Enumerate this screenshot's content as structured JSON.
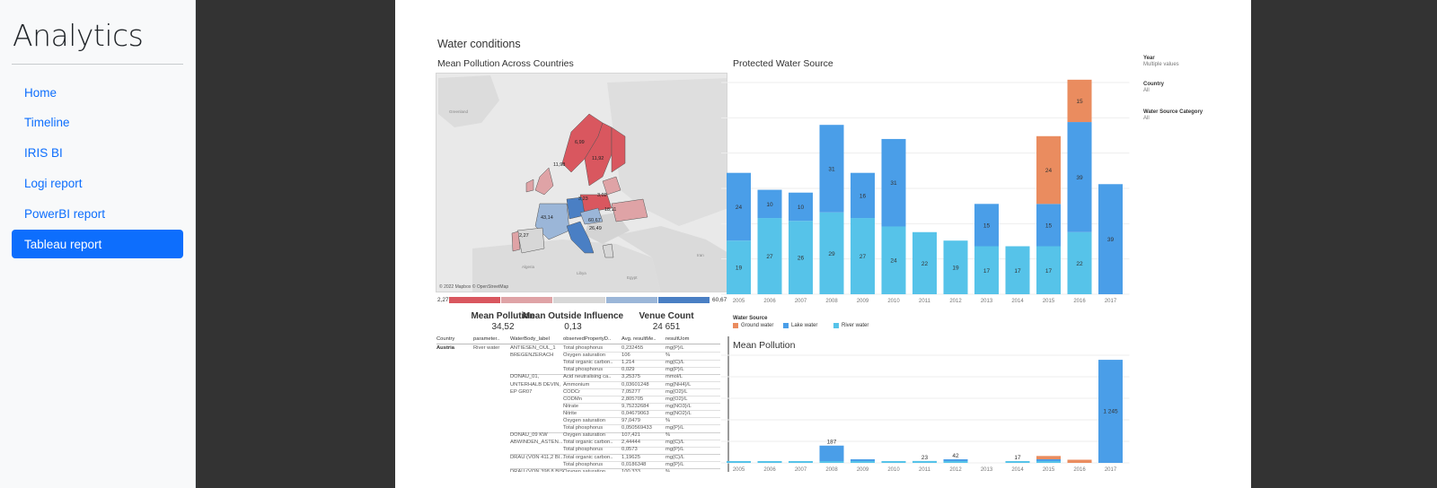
{
  "sidebar": {
    "brand": "Analytics",
    "items": [
      {
        "label": "Home",
        "active": false
      },
      {
        "label": "Timeline",
        "active": false
      },
      {
        "label": "IRIS BI",
        "active": false
      },
      {
        "label": "Logi report",
        "active": false
      },
      {
        "label": "PowerBI report",
        "active": false
      },
      {
        "label": "Tableau report",
        "active": true
      }
    ]
  },
  "report": {
    "title": "Water conditions",
    "map": {
      "title": "Mean Pollution Across Countries",
      "credit": "© 2022 Mapbox © OpenStreetMap",
      "region_labels": [
        "Greenland",
        "Algeria",
        "Libya",
        "Egypt",
        "Iran"
      ],
      "country_labels": [
        "6,99",
        "11,92",
        "11,98",
        "3,02",
        "3,23",
        "18,11",
        "43,14",
        "60,67",
        "26,49",
        "2,27"
      ],
      "ramp_min": "2,27",
      "ramp_max": "60,67",
      "ramp_colors": [
        "#d9575f",
        "#dfa3a6",
        "#d7d7d7",
        "#9bb6d8",
        "#4a7fc4"
      ]
    },
    "kpis": [
      {
        "label": "Mean Pollution",
        "value": "34,52"
      },
      {
        "label": "Mean Outside Influence",
        "value": "0,13"
      },
      {
        "label": "Venue Count",
        "value": "24 651"
      }
    ],
    "table": {
      "headers": [
        "Country",
        "parameter..",
        "WaterBody_label",
        "observedPropertyD..",
        "Avg. resultMe..",
        "resultUom"
      ],
      "country": "Austria",
      "parameter": "River water",
      "groups": [
        {
          "waterbody": [
            "ANTIESEN_OUL_1",
            "BREGENZERACH"
          ],
          "rows": [
            [
              "Total phosphorus",
              "0,232455",
              "mg{P}/L"
            ],
            [
              "Oxygen saturation",
              "106",
              "%"
            ],
            [
              "Total organic carbon..",
              "1,214",
              "mg{C}/L"
            ],
            [
              "Total phosphorus",
              "0,029",
              "mg{P}/L"
            ]
          ]
        },
        {
          "waterbody": [
            "DONAU_01,",
            "UNTERHALB DEVIN,",
            "EP GR07"
          ],
          "rows": [
            [
              "Acid neutralising ca..",
              "3,25375",
              "mmol/L"
            ],
            [
              "Ammonium",
              "0,03601248",
              "mg{NH4}/L"
            ],
            [
              "CODCr",
              "7,05277",
              "mg{O2}/L"
            ],
            [
              "CODMn",
              "2,805705",
              "mg{O2}/L"
            ],
            [
              "Nitrate",
              "9,75232684",
              "mg{NO3}/L"
            ],
            [
              "Nitrite",
              "0,04679063",
              "mg{NO2}/L"
            ],
            [
              "Oxygen saturation",
              "97,0479",
              "%"
            ],
            [
              "Total phosphorus",
              "0,050569433",
              "mg{P}/L"
            ]
          ]
        },
        {
          "waterbody": [
            "DONAU_09 KW",
            "ABWINDEN_ASTEN..."
          ],
          "rows": [
            [
              "Oxygen saturation",
              "107,421",
              "%"
            ],
            [
              "Total organic carbon..",
              "2,44444",
              "mg{C}/L"
            ],
            [
              "Total phosphorus",
              "0,0573",
              "mg{P}/L"
            ]
          ]
        },
        {
          "waterbody": [
            "DRAU (VON 411,2 BI..."
          ],
          "rows": [
            [
              "Total organic carbon..",
              "1,19625",
              "mg{C}/L"
            ],
            [
              "Total phosphorus",
              "0,0186348",
              "mg{P}/L"
            ]
          ]
        },
        {
          "waterbody": [
            "DRAU (VON 398,8 BIS"
          ],
          "rows": [
            [
              "Oxygen saturation",
              "100,333",
              "%"
            ]
          ]
        }
      ]
    },
    "filters": [
      {
        "label": "Year",
        "value": "Multiple values"
      },
      {
        "label": "Country",
        "value": "All"
      },
      {
        "label": "Water Source Category",
        "value": "All"
      }
    ],
    "colors": {
      "ground": "#ea8c5f",
      "lake": "#4a9ee8",
      "river": "#56c3e9",
      "gridline": "#eeeeee"
    }
  },
  "chart_data": [
    {
      "type": "bar",
      "stacked": true,
      "title": "Protected Water Source",
      "categories": [
        "2005",
        "2006",
        "2007",
        "2008",
        "2009",
        "2010",
        "2011",
        "2012",
        "2013",
        "2014",
        "2015",
        "2016",
        "2017"
      ],
      "series": [
        {
          "name": "River water",
          "values": [
            19,
            27,
            26,
            29,
            27,
            24,
            22,
            19,
            17,
            17,
            17,
            22,
            null
          ]
        },
        {
          "name": "Lake water",
          "values": [
            24,
            10,
            10,
            31,
            16,
            31,
            null,
            null,
            15,
            null,
            15,
            39,
            39
          ]
        },
        {
          "name": "Ground water",
          "values": [
            null,
            null,
            null,
            null,
            null,
            null,
            null,
            null,
            null,
            null,
            24,
            15,
            null
          ]
        }
      ],
      "legend_title": "Water Source",
      "legend_placement": "bottom-left",
      "ylim": [
        0,
        75
      ],
      "grid": true
    },
    {
      "type": "bar",
      "stacked": true,
      "title": "Mean Pollution",
      "categories": [
        "2005",
        "2006",
        "2007",
        "2008",
        "2009",
        "2010",
        "2011",
        "2012",
        "2013",
        "2014",
        "2015",
        "2016",
        "2017"
      ],
      "series": [
        {
          "name": "River water",
          "values": [
            8,
            10,
            12,
            10,
            10,
            7,
            23,
            21,
            null,
            17,
            8,
            null,
            null
          ]
        },
        {
          "name": "Lake water",
          "values": [
            null,
            null,
            null,
            187,
            22,
            null,
            null,
            21,
            null,
            null,
            20,
            null,
            1245
          ]
        },
        {
          "name": "Ground water",
          "values": [
            null,
            null,
            null,
            null,
            null,
            null,
            null,
            null,
            null,
            null,
            40,
            38,
            null
          ]
        }
      ],
      "data_labels": {
        "2008": "187",
        "2011": "23",
        "2012": "42",
        "2014": "17",
        "2017": "1 245"
      },
      "ylim": [
        0,
        1300
      ],
      "grid": true
    }
  ]
}
